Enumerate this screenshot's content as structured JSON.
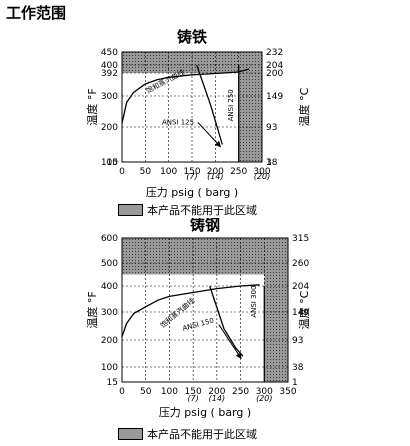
{
  "page_title": "工作范围",
  "colors": {
    "restricted_fill": "#9a9a9a",
    "curve": "#000000"
  },
  "chart_data": [
    {
      "type": "line",
      "title": "铸铁",
      "xlabel": "压力 psig ( barg )",
      "ylabel_left": "温度 °F",
      "ylabel_right": "温度 °C",
      "x_ticks": [
        "0",
        "50",
        "100",
        "150",
        "200",
        "250",
        "300"
      ],
      "x_ticks_barg": [
        {
          "x": 150,
          "label": "(7)"
        },
        {
          "x": 200,
          "label": "(14)"
        },
        {
          "x": 300,
          "label": "(20)"
        }
      ],
      "y_ticks_f": [
        "450",
        "400",
        "392",
        "300",
        "200",
        "100",
        "15"
      ],
      "y_ticks_c": [
        "232",
        "204",
        "200",
        "149",
        "93",
        "38",
        "1"
      ],
      "xlim": [
        0,
        300
      ],
      "series": [
        {
          "name": "饱和蒸汽曲线",
          "points": [
            [
              0,
              212
            ],
            [
              10,
              280
            ],
            [
              25,
              315
            ],
            [
              50,
              348
            ],
            [
              75,
              365
            ],
            [
              100,
              375
            ],
            [
              150,
              385
            ],
            [
              200,
              390
            ],
            [
              250,
              393
            ],
            [
              272,
              396
            ]
          ]
        },
        {
          "name": "ANSI 125",
          "points": [
            [
              160,
              400
            ],
            [
              190,
              270
            ],
            [
              215,
              150
            ]
          ]
        },
        {
          "name": "ANSI 250",
          "points": [
            [
              250,
              400
            ],
            [
              250,
              15
            ]
          ]
        }
      ],
      "restricted_regions": [
        {
          "x": [
            0,
            300
          ],
          "y": [
            392,
            450
          ]
        },
        {
          "x": [
            250,
            300
          ],
          "y": [
            15,
            450
          ]
        }
      ],
      "annotations": [
        {
          "text": "饱和蒸汽曲线",
          "x": 95,
          "y": 350,
          "angle": -28
        },
        {
          "text": "ANSI 125",
          "x": 120,
          "y": 208,
          "angle": 0
        },
        {
          "text": "ANSI 250",
          "x": 238,
          "y": 270,
          "angle": -90
        }
      ],
      "legend": "本产品不能用于此区域"
    },
    {
      "type": "line",
      "title": "铸钢",
      "xlabel": "压力 psig ( barg )",
      "ylabel_left": "温度 °F",
      "ylabel_right": "温度 °C",
      "x_ticks": [
        "0",
        "50",
        "100",
        "150",
        "200",
        "250",
        "300",
        "350"
      ],
      "x_ticks_barg": [
        {
          "x": 150,
          "label": "(7)"
        },
        {
          "x": 200,
          "label": "(14)"
        },
        {
          "x": 300,
          "label": "(20)"
        }
      ],
      "y_ticks_f": [
        "600",
        "500",
        "400",
        "300",
        "200",
        "100",
        "15"
      ],
      "y_ticks_c": [
        "315",
        "260",
        "204",
        "149",
        "93",
        "38",
        "1"
      ],
      "xlim": [
        0,
        350
      ],
      "series": [
        {
          "name": "饱和蒸汽曲线",
          "points": [
            [
              0,
              212
            ],
            [
              10,
              260
            ],
            [
              25,
              295
            ],
            [
              50,
              320
            ],
            [
              75,
              345
            ],
            [
              100,
              360
            ],
            [
              150,
              375
            ],
            [
              200,
              390
            ],
            [
              250,
              400
            ],
            [
              290,
              405
            ]
          ]
        },
        {
          "name": "ANSI 150",
          "points": [
            [
              185,
              400
            ],
            [
              215,
              240
            ],
            [
              240,
              170
            ],
            [
              255,
              140
            ]
          ]
        },
        {
          "name": "ANSI 300",
          "points": [
            [
              300,
              400
            ],
            [
              300,
              15
            ]
          ]
        }
      ],
      "restricted_regions": [
        {
          "x": [
            0,
            350
          ],
          "y": [
            450,
            600
          ]
        },
        {
          "x": [
            300,
            350
          ],
          "y": [
            15,
            600
          ]
        }
      ],
      "annotations": [
        {
          "text": "饱和蒸汽曲线",
          "x": 120,
          "y": 290,
          "angle": -40
        },
        {
          "text": "ANSI 150",
          "x": 162,
          "y": 248,
          "angle": -15
        },
        {
          "text": "ANSI 300",
          "x": 283,
          "y": 340,
          "angle": -90
        }
      ],
      "legend": "本产品不能用于此区域"
    }
  ]
}
